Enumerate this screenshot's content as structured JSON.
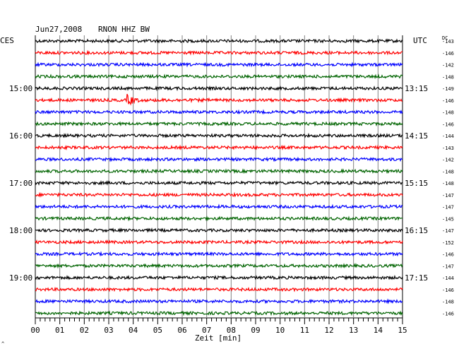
{
  "header": {
    "date": "Jun27,2008",
    "station": "RNON HHZ BW"
  },
  "labels": {
    "left_tz": "CES",
    "right_tz": "UTC",
    "dc": "DC",
    "xlabel": "Zeit [min]",
    "corner_mark": "^"
  },
  "colors": [
    "#000000",
    "#ff0000",
    "#0000ff",
    "#006400"
  ],
  "chart_data": {
    "type": "line",
    "title": "Jun27,2008  RNON HHZ BW",
    "xlabel": "Zeit [min]",
    "xlim": [
      0,
      15
    ],
    "x_ticks": [
      "00",
      "01",
      "02",
      "03",
      "04",
      "05",
      "06",
      "07",
      "08",
      "09",
      "10",
      "11",
      "12",
      "13",
      "14",
      "15"
    ],
    "traces_per_hour": 4,
    "left_hour_labels": [
      "15:00",
      "16:00",
      "17:00",
      "18:00",
      "19:00"
    ],
    "right_hour_labels": [
      "13:15",
      "14:15",
      "15:15",
      "16:15",
      "17:15"
    ],
    "hour_label_rows": [
      4,
      8,
      12,
      16,
      20
    ],
    "dc_offsets": [
      -143,
      -146,
      -142,
      -148,
      -149,
      -146,
      -148,
      -146,
      -144,
      -143,
      -142,
      -148,
      -148,
      -147,
      -147,
      -145,
      -147,
      -152,
      -146,
      -147,
      -144,
      -146,
      -148,
      -146
    ],
    "events": [
      {
        "row": 5,
        "start_min": 3.75,
        "end_min": 4.9,
        "amplitude": "large"
      },
      {
        "row": 5,
        "start_min": 4.9,
        "end_min": 7.2,
        "amplitude": "small"
      },
      {
        "row": 9,
        "start_min": 8.2,
        "end_min": 8.8,
        "amplitude": "small"
      }
    ]
  }
}
